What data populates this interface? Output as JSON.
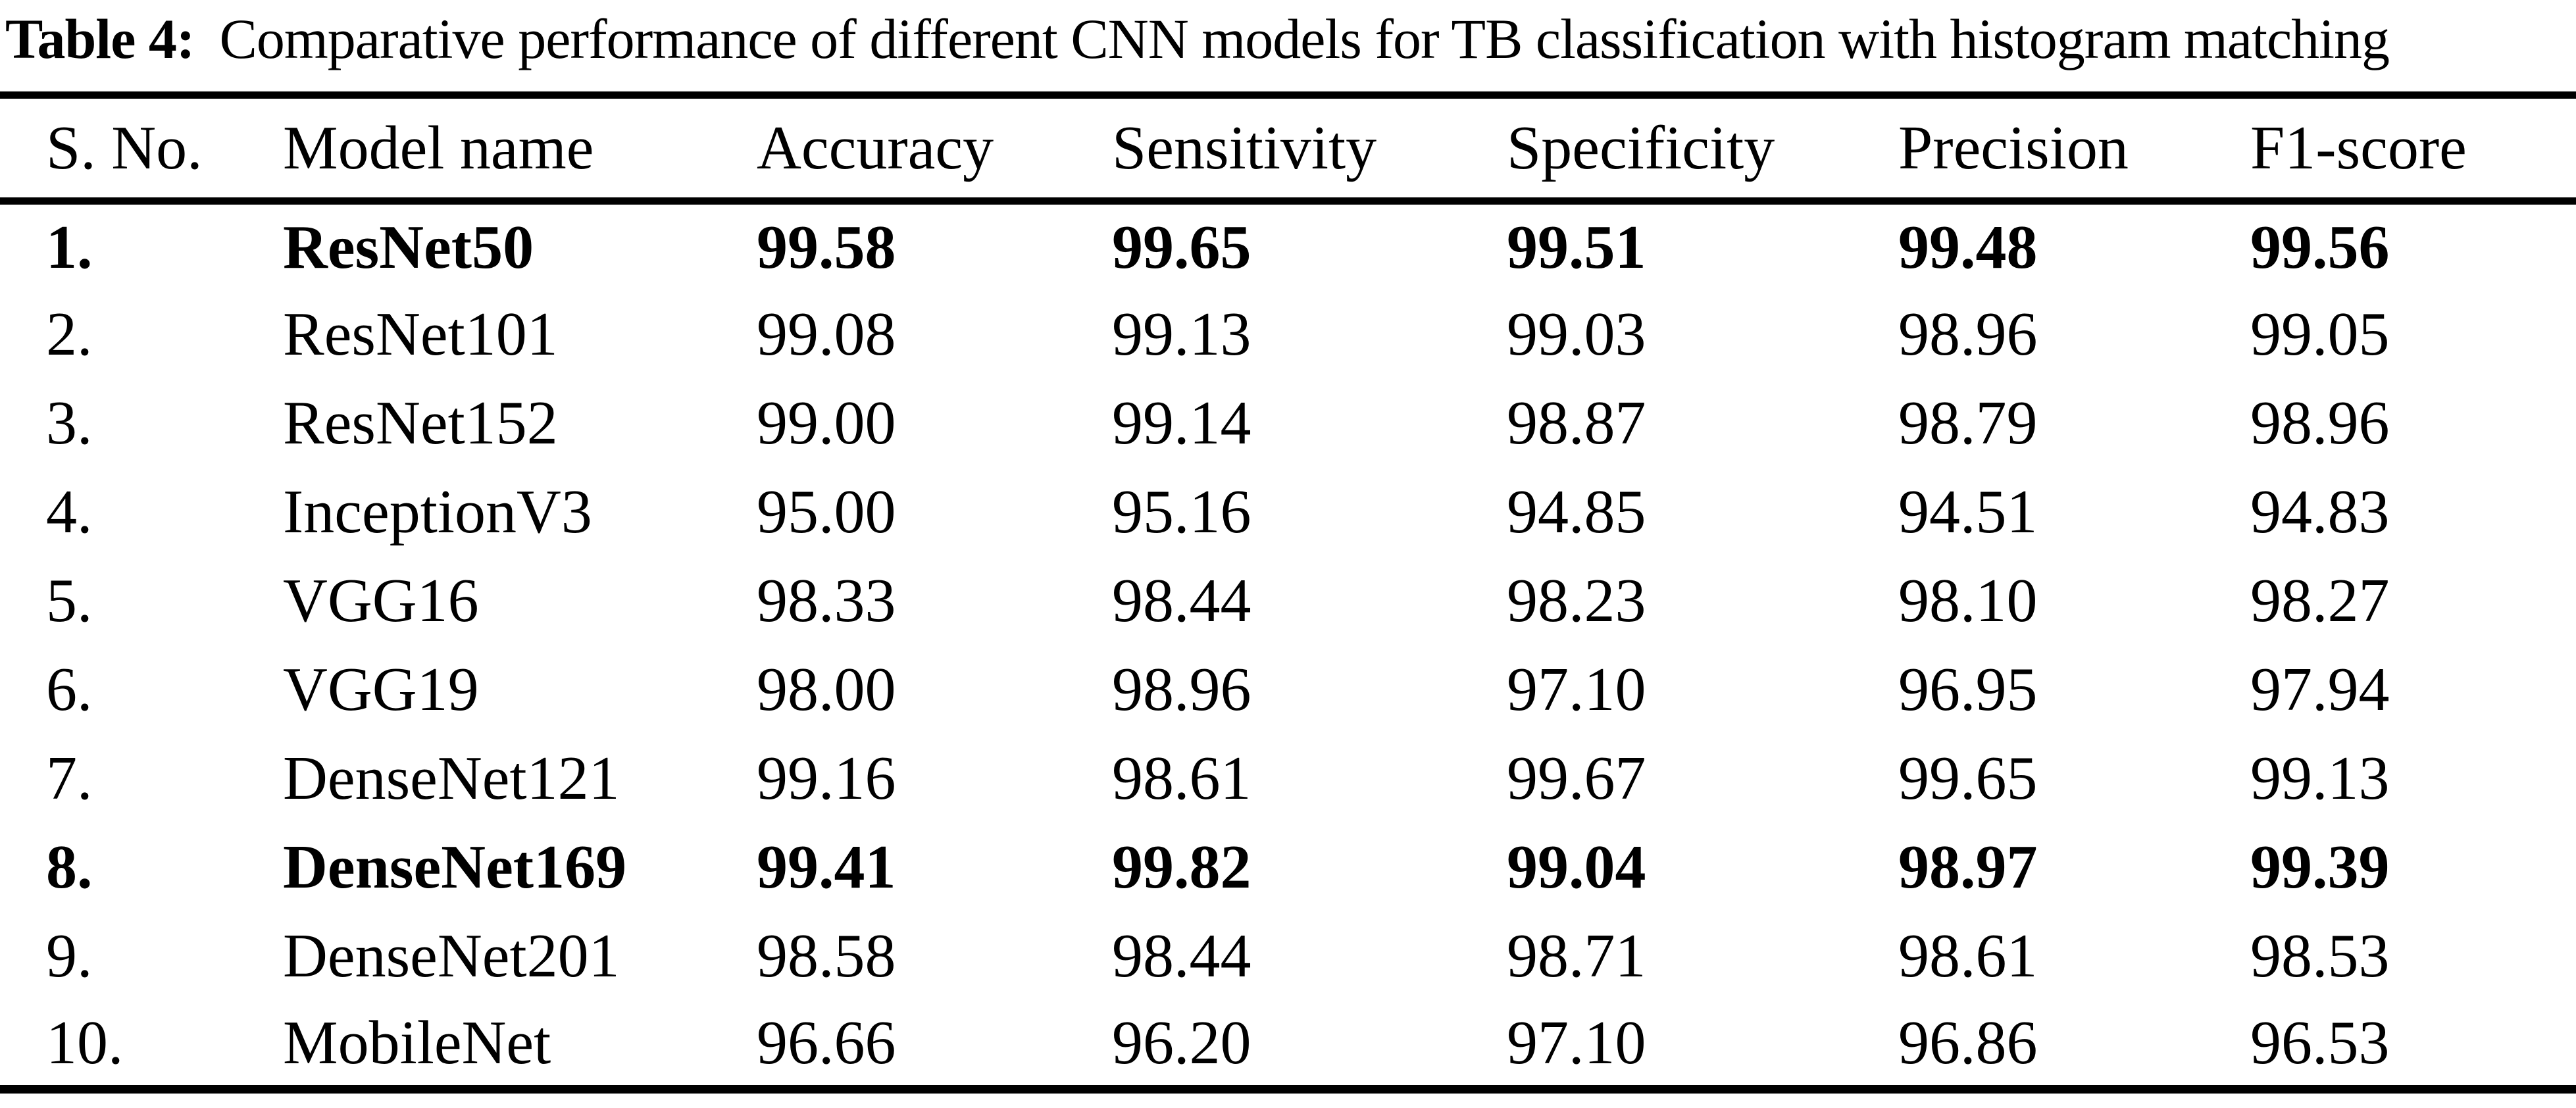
{
  "title": {
    "label": "Table 4:",
    "text": "Comparative performance of different CNN models for TB classification with histogram matching"
  },
  "table": {
    "headers": [
      "S. No.",
      "Model name",
      "Accuracy",
      "Sensitivity",
      "Specificity",
      "Precision",
      "F1-score"
    ],
    "rows": [
      {
        "sno": "1.",
        "model": "ResNet50",
        "accuracy": "99.58",
        "sensitivity": "99.65",
        "specificity": "99.51",
        "precision": "99.48",
        "f1_score": "99.56",
        "emphasized": true
      },
      {
        "sno": "2.",
        "model": "ResNet101",
        "accuracy": "99.08",
        "sensitivity": "99.13",
        "specificity": "99.03",
        "precision": "98.96",
        "f1_score": "99.05",
        "emphasized": false
      },
      {
        "sno": "3.",
        "model": "ResNet152",
        "accuracy": "99.00",
        "sensitivity": "99.14",
        "specificity": "98.87",
        "precision": "98.79",
        "f1_score": "98.96",
        "emphasized": false
      },
      {
        "sno": "4.",
        "model": "InceptionV3",
        "accuracy": "95.00",
        "sensitivity": "95.16",
        "specificity": "94.85",
        "precision": "94.51",
        "f1_score": "94.83",
        "emphasized": false
      },
      {
        "sno": "5.",
        "model": "VGG16",
        "accuracy": "98.33",
        "sensitivity": "98.44",
        "specificity": "98.23",
        "precision": "98.10",
        "f1_score": "98.27",
        "emphasized": false
      },
      {
        "sno": "6.",
        "model": "VGG19",
        "accuracy": "98.00",
        "sensitivity": "98.96",
        "specificity": "97.10",
        "precision": "96.95",
        "f1_score": "97.94",
        "emphasized": false
      },
      {
        "sno": "7.",
        "model": "DenseNet121",
        "accuracy": "99.16",
        "sensitivity": "98.61",
        "specificity": "99.67",
        "precision": "99.65",
        "f1_score": "99.13",
        "emphasized": false
      },
      {
        "sno": "8.",
        "model": "DenseNet169",
        "accuracy": "99.41",
        "sensitivity": "99.82",
        "specificity": "99.04",
        "precision": "98.97",
        "f1_score": "99.39",
        "emphasized": true
      },
      {
        "sno": "9.",
        "model": "DenseNet201",
        "accuracy": "98.58",
        "sensitivity": "98.44",
        "specificity": "98.71",
        "precision": "98.61",
        "f1_score": "98.53",
        "emphasized": false
      },
      {
        "sno": "10.",
        "model": "MobileNet",
        "accuracy": "96.66",
        "sensitivity": "96.20",
        "specificity": "97.10",
        "precision": "96.86",
        "f1_score": "96.53",
        "emphasized": false
      }
    ]
  },
  "colors": {
    "text": "#000000",
    "background": "#ffffff",
    "rule": "#000000"
  }
}
